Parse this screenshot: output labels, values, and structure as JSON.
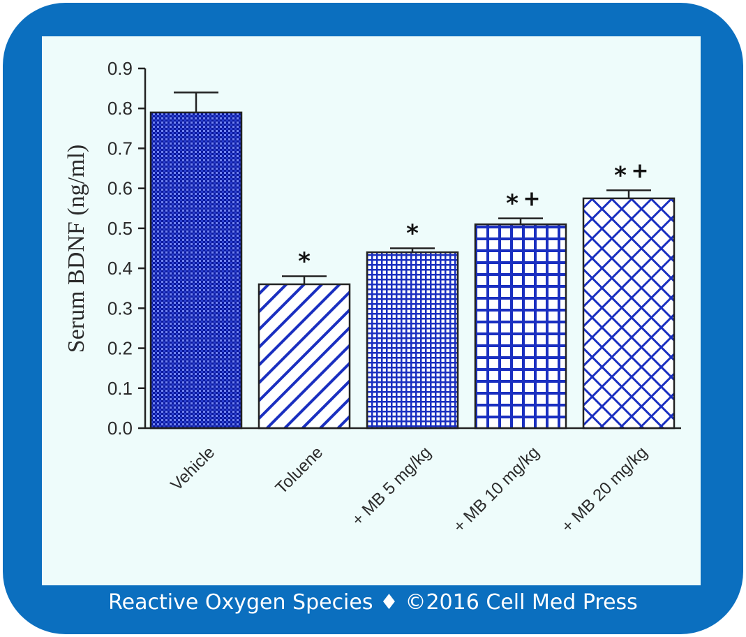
{
  "footer": "Reactive Oxygen Species ♦ ©2016 Cell Med Press",
  "colors": {
    "frame": "#0b6fbf",
    "panel": "#eefcfb",
    "bar": "#1a2fc0",
    "axis": "#222222"
  },
  "chart_data": {
    "type": "bar",
    "ylabel": "Serum BDNF (ng/ml)",
    "ylim": [
      0.0,
      0.9
    ],
    "yticks": [
      "0.0",
      "0.1",
      "0.2",
      "0.3",
      "0.4",
      "0.5",
      "0.6",
      "0.7",
      "0.8",
      "0.9"
    ],
    "grid": false,
    "categories": [
      "Vehicle",
      "Toluene",
      "+ MB 5 mg/kg",
      "+ MB 10 mg/kg",
      "+ MB 20 mg/kg"
    ],
    "values": [
      0.79,
      0.36,
      0.44,
      0.51,
      0.575
    ],
    "errors": [
      0.05,
      0.02,
      0.01,
      0.015,
      0.02
    ],
    "patterns": [
      "dense-dots",
      "diagonal-lines",
      "fine-grid",
      "coarse-grid",
      "crosshatch"
    ],
    "annotations": [
      {
        "category": "Toluene",
        "text": "*"
      },
      {
        "category": "+ MB 5 mg/kg",
        "text": "*"
      },
      {
        "category": "+ MB 10 mg/kg",
        "text": "*+"
      },
      {
        "category": "+ MB 20 mg/kg",
        "text": "*+"
      }
    ]
  }
}
